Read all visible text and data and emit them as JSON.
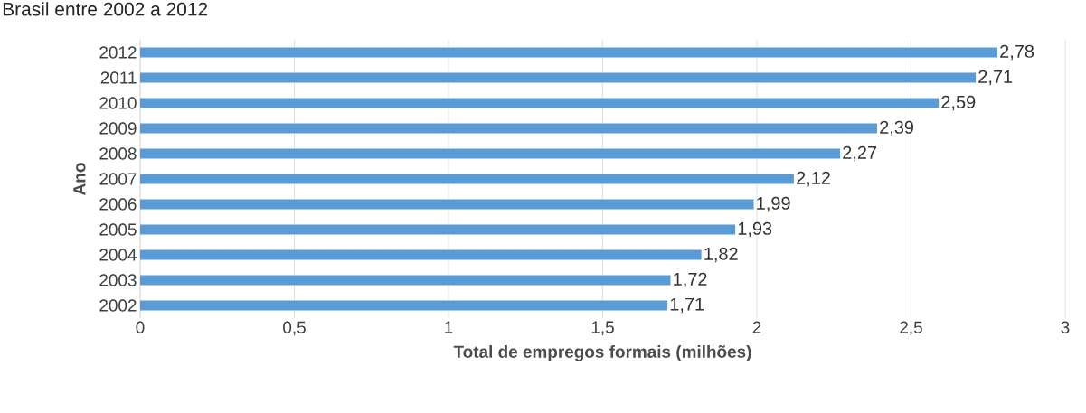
{
  "chart_data": {
    "type": "bar",
    "orientation": "horizontal",
    "title": "Brasil entre 2002 a 2012",
    "xlabel": "Total de empregos formais (milhões)",
    "ylabel": "Ano",
    "categories": [
      "2012",
      "2011",
      "2010",
      "2009",
      "2008",
      "2007",
      "2006",
      "2005",
      "2004",
      "2003",
      "2002"
    ],
    "values": [
      2.78,
      2.71,
      2.59,
      2.39,
      2.27,
      2.12,
      1.99,
      1.93,
      1.82,
      1.72,
      1.71
    ],
    "value_labels": [
      "2,78",
      "2,71",
      "2,59",
      "2,39",
      "2,27",
      "2,12",
      "1,99",
      "1,93",
      "1,82",
      "1,72",
      "1,71"
    ],
    "color": "#5b9bd5",
    "xlim": [
      0,
      3
    ],
    "xticks": [
      0,
      {
        "value": 0.5,
        "label": "0,5"
      },
      1,
      {
        "value": 1.5,
        "label": "1,5"
      },
      2,
      {
        "value": 2.5,
        "label": "2,5"
      },
      3
    ],
    "grid": "x"
  }
}
